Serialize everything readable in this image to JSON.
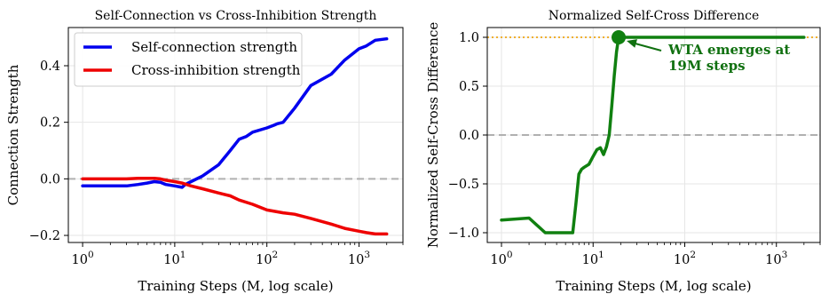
{
  "chart_data": [
    {
      "type": "line",
      "title": "Self-Connection vs Cross-Inhibition Strength",
      "xlabel": "Training Steps (M, log scale)",
      "ylabel": "Connection Strength",
      "xscale": "log",
      "xlim": [
        0.7,
        3000
      ],
      "ylim": [
        -0.225,
        0.535
      ],
      "xticks": [
        {
          "value": 1,
          "base": "10",
          "exp": "0"
        },
        {
          "value": 10,
          "base": "10",
          "exp": "1"
        },
        {
          "value": 100,
          "base": "10",
          "exp": "2"
        },
        {
          "value": 1000,
          "base": "10",
          "exp": "3"
        }
      ],
      "yticks": [
        {
          "value": 0.4,
          "label": "0.4"
        },
        {
          "value": 0.2,
          "label": "0.2"
        },
        {
          "value": 0.0,
          "label": "0.0"
        },
        {
          "value": -0.2,
          "label": "−0.2"
        }
      ],
      "grid": true,
      "legend_position": "upper-left",
      "reference_line": {
        "y": 0.0,
        "style": "dashed",
        "color": "#b0b0b0"
      },
      "series": [
        {
          "name": "Self-connection strength",
          "color": "#0000ee",
          "x": [
            1,
            2,
            3,
            4,
            5,
            6,
            7,
            8,
            10,
            12,
            13,
            15,
            20,
            30,
            40,
            50,
            60,
            70,
            100,
            120,
            130,
            150,
            200,
            300,
            500,
            700,
            1000,
            1200,
            1500,
            2000
          ],
          "y": [
            -0.025,
            -0.025,
            -0.025,
            -0.02,
            -0.015,
            -0.01,
            -0.012,
            -0.02,
            -0.025,
            -0.03,
            -0.02,
            -0.01,
            0.01,
            0.05,
            0.1,
            0.14,
            0.15,
            0.165,
            0.18,
            0.19,
            0.195,
            0.2,
            0.25,
            0.33,
            0.37,
            0.42,
            0.46,
            0.47,
            0.49,
            0.495
          ]
        },
        {
          "name": "Cross-inhibition strength",
          "color": "#ee0000",
          "x": [
            1,
            2,
            3,
            4,
            5,
            6,
            7,
            8,
            10,
            12,
            15,
            20,
            30,
            40,
            50,
            70,
            100,
            150,
            200,
            300,
            500,
            700,
            1000,
            1200,
            1500,
            2000
          ],
          "y": [
            0,
            0,
            0,
            0.002,
            0.002,
            0.002,
            0,
            -0.005,
            -0.01,
            -0.015,
            -0.025,
            -0.035,
            -0.05,
            -0.06,
            -0.075,
            -0.09,
            -0.11,
            -0.12,
            -0.125,
            -0.14,
            -0.16,
            -0.175,
            -0.185,
            -0.19,
            -0.195,
            -0.195
          ]
        }
      ]
    },
    {
      "type": "line",
      "title": "Normalized Self-Cross Difference",
      "xlabel": "Training Steps (M, log scale)",
      "ylabel": "Normalized Self-Cross Difference",
      "xscale": "log",
      "xlim": [
        0.7,
        3000
      ],
      "ylim": [
        -1.1,
        1.1
      ],
      "xticks": [
        {
          "value": 1,
          "base": "10",
          "exp": "0"
        },
        {
          "value": 10,
          "base": "10",
          "exp": "1"
        },
        {
          "value": 100,
          "base": "10",
          "exp": "2"
        },
        {
          "value": 1000,
          "base": "10",
          "exp": "3"
        }
      ],
      "yticks": [
        {
          "value": 1.0,
          "label": "1.0"
        },
        {
          "value": 0.5,
          "label": "0.5"
        },
        {
          "value": 0.0,
          "label": "0.0"
        },
        {
          "value": -0.5,
          "label": "−0.5"
        },
        {
          "value": -1.0,
          "label": "−1.0"
        }
      ],
      "grid": true,
      "reference_lines": [
        {
          "y": 0.0,
          "style": "dashed",
          "color": "#b0b0b0"
        },
        {
          "y": 1.0,
          "style": "dotted",
          "color": "#f0b030"
        }
      ],
      "series": [
        {
          "color": "#108010",
          "x": [
            1,
            2,
            3,
            4,
            5,
            6,
            6.5,
            7,
            7.5,
            8,
            9,
            10,
            11,
            12,
            13,
            14,
            15,
            16,
            17,
            18,
            19,
            25,
            50,
            100,
            200,
            500,
            1000,
            2000
          ],
          "y": [
            -0.87,
            -0.85,
            -1.0,
            -1.0,
            -1.0,
            -1.0,
            -0.7,
            -0.4,
            -0.35,
            -0.33,
            -0.3,
            -0.22,
            -0.15,
            -0.13,
            -0.2,
            -0.12,
            0.0,
            0.3,
            0.6,
            0.85,
            1.0,
            1.0,
            1.0,
            1.0,
            1.0,
            1.0,
            1.0,
            1.0
          ]
        }
      ],
      "marker": {
        "x": 19,
        "y": 1.0
      },
      "annotation": {
        "lines": [
          "WTA emerges at",
          "19M steps"
        ],
        "points_to": {
          "x": 19,
          "y": 1.0
        }
      }
    }
  ]
}
